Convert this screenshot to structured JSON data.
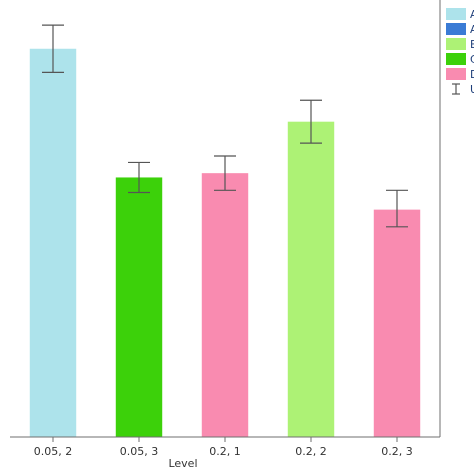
{
  "chart_data": {
    "type": "bar",
    "xlabel": "Level",
    "ylabel": "",
    "categories": [
      "0.05, 2",
      "0.05, 3",
      "0.2, 1",
      "0.2, 2",
      "0.2, 3"
    ],
    "values": [
      0.905,
      0.605,
      0.615,
      0.735,
      0.53
    ],
    "error_lower": [
      0.85,
      0.57,
      0.575,
      0.685,
      0.49
    ],
    "error_upper": [
      0.96,
      0.64,
      0.655,
      0.785,
      0.575
    ],
    "bar_colors": [
      "#ade3eb",
      "#3cd10a",
      "#f98bb0",
      "#adf275",
      "#f98bb0"
    ],
    "ylim": [
      0,
      1
    ],
    "grid": false,
    "legend": {
      "placement": "right",
      "entries": [
        {
          "label": "A",
          "color": "#ade3eb",
          "marker": "swatch"
        },
        {
          "label": "A",
          "color": "#3a7bd5",
          "marker": "swatch"
        },
        {
          "label": "B",
          "color": "#adf275",
          "marker": "swatch"
        },
        {
          "label": "C",
          "color": "#3cd10a",
          "marker": "swatch"
        },
        {
          "label": "D",
          "color": "#f98bb0",
          "marker": "swatch"
        },
        {
          "label": "U",
          "color": "#555555",
          "marker": "errorbar"
        }
      ]
    }
  }
}
